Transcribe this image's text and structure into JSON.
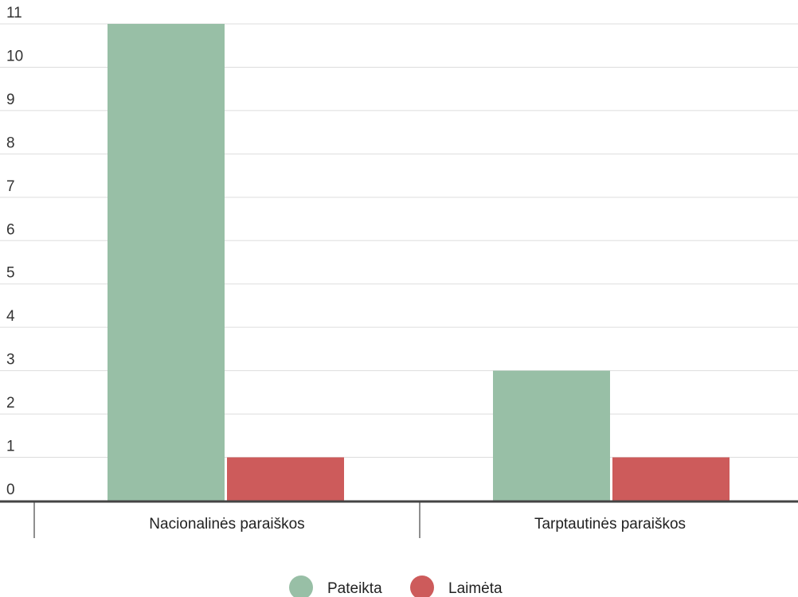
{
  "chart_data": {
    "type": "bar",
    "categories": [
      "Nacionalinės paraiškos",
      "Tarptautinės paraiškos"
    ],
    "series": [
      {
        "name": "Pateikta",
        "values": [
          11,
          3
        ],
        "color": "#98bfa6"
      },
      {
        "name": "Laimėta",
        "values": [
          1,
          1
        ],
        "color": "#cd5b5b"
      }
    ],
    "yticks": [
      "0",
      "1",
      "2",
      "3",
      "4",
      "5",
      "6",
      "7",
      "8",
      "9",
      "10",
      "11"
    ],
    "ylim": [
      0,
      11
    ],
    "grid": true,
    "legend_position": "bottom-center",
    "gridline_color": "#dddddd",
    "axis_color": "#444444"
  }
}
